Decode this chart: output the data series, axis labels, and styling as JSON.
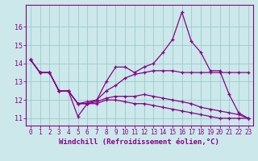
{
  "xlabel": "Windchill (Refroidissement éolien,°C)",
  "background_color": "#cce8ea",
  "line_color": "#880088",
  "grid_color": "#99cccc",
  "hours": [
    0,
    1,
    2,
    3,
    4,
    5,
    6,
    7,
    8,
    9,
    10,
    11,
    12,
    13,
    14,
    15,
    16,
    17,
    18,
    19,
    20,
    21,
    22,
    23
  ],
  "line1": [
    14.2,
    13.5,
    13.5,
    12.5,
    12.5,
    11.8,
    11.8,
    12.0,
    13.0,
    13.8,
    13.8,
    13.5,
    13.8,
    14.0,
    14.6,
    15.3,
    16.8,
    15.2,
    14.6,
    13.6,
    13.6,
    12.3,
    11.3,
    11.0
  ],
  "line2": [
    14.2,
    13.5,
    13.5,
    12.5,
    12.5,
    11.8,
    11.9,
    12.0,
    12.5,
    12.8,
    13.2,
    13.4,
    13.5,
    13.6,
    13.6,
    13.6,
    13.5,
    13.5,
    13.5,
    13.5,
    13.5,
    13.5,
    13.5,
    13.5
  ],
  "line3": [
    14.2,
    13.5,
    13.5,
    12.5,
    12.5,
    11.8,
    11.8,
    11.9,
    12.1,
    12.2,
    12.2,
    12.2,
    12.3,
    12.2,
    12.1,
    12.0,
    11.9,
    11.8,
    11.6,
    11.5,
    11.4,
    11.3,
    11.2,
    11.0
  ],
  "line4": [
    14.2,
    13.5,
    13.5,
    12.5,
    12.5,
    11.1,
    11.8,
    11.8,
    12.0,
    12.0,
    11.9,
    11.8,
    11.8,
    11.7,
    11.6,
    11.5,
    11.4,
    11.3,
    11.2,
    11.1,
    11.0,
    11.0,
    11.0,
    11.0
  ],
  "ylim": [
    10.6,
    17.2
  ],
  "yticks": [
    11,
    12,
    13,
    14,
    15,
    16
  ],
  "tick_fontsize": 5.5,
  "xlabel_fontsize": 6.5
}
